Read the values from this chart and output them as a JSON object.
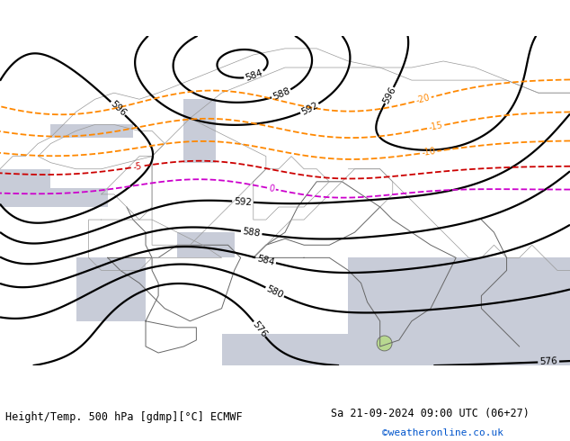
{
  "title_left": "Height/Temp. 500 hPa [gdmp][°C] ECMWF",
  "title_right": "Sa 21-09-2024 09:00 UTC (06+27)",
  "watermark": "©weatheronline.co.uk",
  "fig_width": 6.34,
  "fig_height": 4.9,
  "dpi": 100,
  "footer_left_color": "black",
  "footer_right_color": "black",
  "watermark_color": "#0055cc",
  "title_fontsize": 8.5,
  "watermark_fontsize": 8,
  "bg_color": "#b8d890",
  "land_color": "#b8d890",
  "sea_color": "#c8ccd8",
  "border_color": "#999999",
  "coast_color": "#666666",
  "geo_color": "black",
  "geo_linewidth": 1.6,
  "temp_orange_color": "#ff8800",
  "temp_red_color": "#cc0000",
  "temp_magenta_color": "#cc00cc",
  "temp_linewidth": 1.3,
  "extent_lon_min": 20,
  "extent_lon_max": 110,
  "extent_lat_min": 5,
  "extent_lat_max": 57
}
